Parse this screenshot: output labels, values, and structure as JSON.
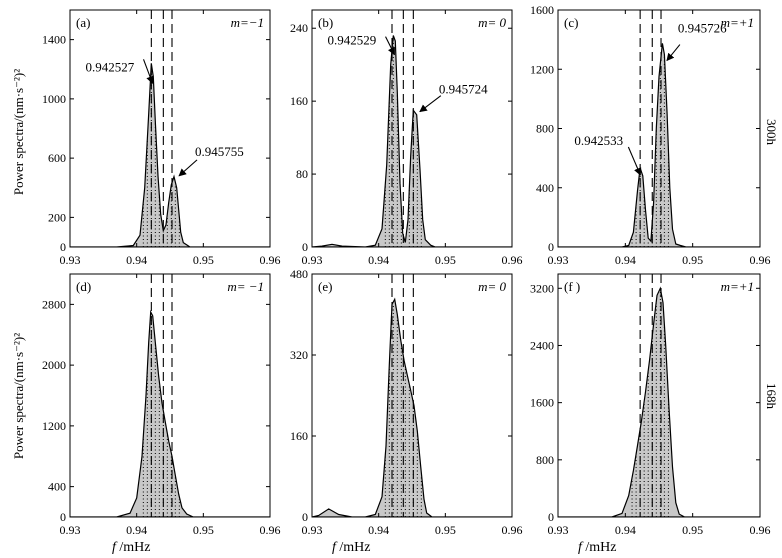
{
  "figure": {
    "row_labels": [
      "300h",
      "168h"
    ],
    "ylabel_rows": [
      "Power spectra/(nm·s⁻²)²",
      "Power spectra/(nm·s⁻²)²"
    ],
    "xlabel": "f /mHz",
    "xlabel_f": "f",
    "xlabel_unit": " /mHz"
  },
  "chart_data": [
    {
      "type": "area",
      "panel": "(a)",
      "m_label": "m=−1",
      "row": 0,
      "col": 0,
      "xlim": [
        0.93,
        0.96
      ],
      "ylim": [
        0,
        1600
      ],
      "xticks": [
        "0.93",
        "0.94",
        "0.95",
        "0.96"
      ],
      "yticks": [
        0,
        200,
        600,
        1000,
        1400
      ],
      "ytick_labels": [
        "0",
        "200",
        "600",
        "1000",
        "1400"
      ],
      "dashed_lines": [
        0.9422,
        0.944,
        0.9453
      ],
      "peaks": [
        {
          "x": 0.942527,
          "y": 1240
        },
        {
          "x": 0.945755,
          "y": 480
        }
      ],
      "x": [
        0.93,
        0.937,
        0.9395,
        0.9405,
        0.9412,
        0.9418,
        0.9422,
        0.9425,
        0.9428,
        0.9432,
        0.9436,
        0.944,
        0.9444,
        0.9448,
        0.9452,
        0.9456,
        0.946,
        0.9463,
        0.9466,
        0.947,
        0.948,
        0.96
      ],
      "y": [
        0,
        0,
        10,
        80,
        400,
        900,
        1240,
        1150,
        850,
        480,
        220,
        110,
        150,
        300,
        420,
        475,
        400,
        250,
        100,
        30,
        0,
        0
      ],
      "annotations": [
        {
          "text": "0.942527",
          "x": 0.942527,
          "y": 1240
        },
        {
          "text": "0.945755",
          "x": 0.945755,
          "y": 480
        }
      ]
    },
    {
      "type": "area",
      "panel": "(b)",
      "m_label": "m= 0",
      "row": 0,
      "col": 1,
      "xlim": [
        0.93,
        0.96
      ],
      "ylim": [
        0,
        260
      ],
      "xticks": [
        "0.93",
        "0.94",
        "0.95",
        "0.96"
      ],
      "yticks": [
        0,
        80,
        160,
        240
      ],
      "ytick_labels": [
        "0",
        "80",
        "160",
        "240"
      ],
      "dashed_lines": [
        0.942,
        0.9437,
        0.9452
      ],
      "peaks": [
        {
          "x": 0.942529,
          "y": 233
        },
        {
          "x": 0.945724,
          "y": 155
        }
      ],
      "x": [
        0.93,
        0.9315,
        0.933,
        0.9345,
        0.938,
        0.9395,
        0.9405,
        0.9412,
        0.9418,
        0.9422,
        0.9425,
        0.9428,
        0.9432,
        0.9436,
        0.944,
        0.9444,
        0.9448,
        0.9452,
        0.9457,
        0.9462,
        0.9466,
        0.947,
        0.9478,
        0.9485,
        0.96
      ],
      "y": [
        0,
        1,
        3,
        1,
        0,
        2,
        20,
        90,
        200,
        232,
        226,
        170,
        70,
        15,
        5,
        30,
        100,
        150,
        145,
        85,
        30,
        8,
        2,
        0,
        0
      ],
      "annotations": [
        {
          "text": "0.942529",
          "x": 0.942529,
          "y": 233
        },
        {
          "text": "0.945724",
          "x": 0.945724,
          "y": 155
        }
      ]
    },
    {
      "type": "area",
      "panel": "(c)",
      "m_label": "m=+1",
      "row": 0,
      "col": 2,
      "xlim": [
        0.93,
        0.96
      ],
      "ylim": [
        0,
        1600
      ],
      "xticks": [
        "0.93",
        "0.94",
        "0.95",
        "0.96"
      ],
      "yticks": [
        0,
        400,
        800,
        1200,
        1600
      ],
      "ytick_labels": [
        "0",
        "400",
        "800",
        "1200",
        "1600"
      ],
      "dashed_lines": [
        0.9422,
        0.944,
        0.9453
      ],
      "peaks": [
        {
          "x": 0.942533,
          "y": 540
        },
        {
          "x": 0.945726,
          "y": 1380
        }
      ],
      "x": [
        0.93,
        0.9395,
        0.9405,
        0.9412,
        0.9418,
        0.9422,
        0.9426,
        0.943,
        0.9434,
        0.9438,
        0.9442,
        0.9446,
        0.945,
        0.9455,
        0.9458,
        0.9462,
        0.9466,
        0.947,
        0.9475,
        0.9482,
        0.949,
        0.96
      ],
      "y": [
        0,
        0,
        10,
        100,
        380,
        535,
        480,
        250,
        60,
        40,
        300,
        800,
        1150,
        1375,
        1300,
        900,
        400,
        120,
        20,
        10,
        0,
        0
      ],
      "annotations": [
        {
          "text": "0.942533",
          "x": 0.942533,
          "y": 540
        },
        {
          "text": "0.945726",
          "x": 0.945726,
          "y": 1380
        }
      ]
    },
    {
      "type": "area",
      "panel": "(d)",
      "m_label": "m= −1",
      "row": 1,
      "col": 0,
      "xlim": [
        0.93,
        0.96
      ],
      "ylim": [
        0,
        3200
      ],
      "xticks": [
        "0.93",
        "0.94",
        "0.95",
        "0.96"
      ],
      "yticks": [
        0,
        400,
        1200,
        2000,
        2800
      ],
      "ytick_labels": [
        "0",
        "400",
        "1200",
        "2000",
        "2800"
      ],
      "dashed_lines": [
        0.9422,
        0.944,
        0.9453
      ],
      "x": [
        0.93,
        0.937,
        0.939,
        0.94,
        0.9408,
        0.9414,
        0.9418,
        0.9421,
        0.9424,
        0.9428,
        0.9433,
        0.9438,
        0.9443,
        0.9448,
        0.9453,
        0.9458,
        0.9463,
        0.9468,
        0.9475,
        0.9485,
        0.96
      ],
      "y": [
        0,
        0,
        50,
        250,
        800,
        1600,
        2300,
        2700,
        2650,
        2300,
        1850,
        1500,
        1250,
        1000,
        800,
        550,
        300,
        120,
        40,
        0,
        0
      ]
    },
    {
      "type": "area",
      "panel": "(e)",
      "m_label": "m= 0",
      "row": 1,
      "col": 1,
      "xlim": [
        0.93,
        0.96
      ],
      "ylim": [
        0,
        480
      ],
      "xticks": [
        "0.93",
        "0.94",
        "0.95",
        "0.96"
      ],
      "yticks": [
        0,
        160,
        320,
        480
      ],
      "ytick_labels": [
        "0",
        "160",
        "320",
        "480"
      ],
      "dashed_lines": [
        0.942,
        0.9437,
        0.9452
      ],
      "x": [
        0.93,
        0.931,
        0.9325,
        0.934,
        0.936,
        0.938,
        0.9395,
        0.9405,
        0.9411,
        0.9416,
        0.942,
        0.9424,
        0.9428,
        0.9433,
        0.9438,
        0.9443,
        0.9448,
        0.9453,
        0.9458,
        0.9463,
        0.9468,
        0.9472,
        0.948,
        0.96
      ],
      "y": [
        0,
        3,
        16,
        5,
        0,
        0,
        5,
        40,
        140,
        300,
        420,
        430,
        400,
        350,
        310,
        280,
        250,
        220,
        170,
        100,
        35,
        8,
        0,
        0
      ]
    },
    {
      "type": "area",
      "panel": "(f )",
      "m_label": "m=+1",
      "row": 1,
      "col": 2,
      "xlim": [
        0.93,
        0.96
      ],
      "ylim": [
        0,
        3400
      ],
      "xticks": [
        "0.93",
        "0.94",
        "0.95",
        "0.96"
      ],
      "yticks": [
        0,
        800,
        1600,
        2400,
        3200
      ],
      "ytick_labels": [
        "0",
        "800",
        "1600",
        "2400",
        "3200"
      ],
      "dashed_lines": [
        0.9422,
        0.944,
        0.9453
      ],
      "x": [
        0.93,
        0.938,
        0.9395,
        0.9405,
        0.9412,
        0.9418,
        0.9424,
        0.943,
        0.9436,
        0.9442,
        0.9447,
        0.9452,
        0.9456,
        0.946,
        0.9465,
        0.947,
        0.9475,
        0.948,
        0.9488,
        0.96
      ],
      "y": [
        0,
        0,
        50,
        300,
        650,
        1000,
        1350,
        1750,
        2200,
        2700,
        3100,
        3200,
        3000,
        2400,
        1500,
        700,
        200,
        40,
        0,
        0
      ]
    }
  ]
}
